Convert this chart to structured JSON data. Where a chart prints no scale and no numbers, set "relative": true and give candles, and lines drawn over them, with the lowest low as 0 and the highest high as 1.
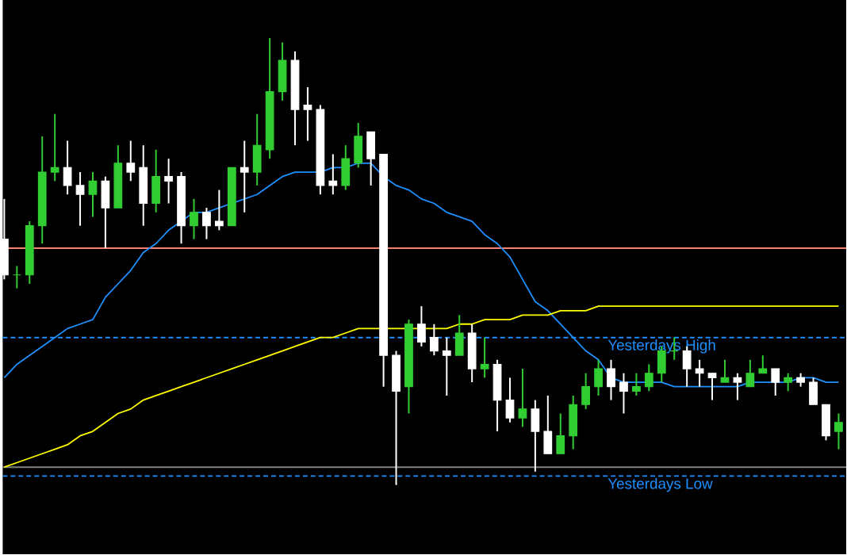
{
  "chart_data": {
    "type": "candlestick",
    "relative": true,
    "categories": [
      null,
      null,
      null,
      null,
      null,
      null,
      null,
      null,
      null,
      null,
      null,
      null,
      null,
      null,
      null,
      null,
      null,
      null,
      null,
      null,
      null,
      null,
      null,
      null,
      null,
      null,
      null,
      null,
      null,
      null,
      null,
      null,
      null,
      null,
      null,
      null,
      null,
      null,
      null,
      null,
      null,
      null,
      null,
      null,
      null,
      null,
      null,
      null,
      null,
      null,
      null,
      null,
      null,
      null,
      null,
      null,
      null,
      null,
      null,
      null,
      null,
      null,
      null,
      null,
      null,
      null,
      null
    ],
    "ohlc": [
      [
        0.55,
        0.64,
        0.46,
        0.47
      ],
      [
        0.47,
        0.49,
        0.44,
        0.47
      ],
      [
        0.47,
        0.59,
        0.45,
        0.58
      ],
      [
        0.58,
        0.78,
        0.54,
        0.7
      ],
      [
        0.7,
        0.83,
        0.68,
        0.71
      ],
      [
        0.71,
        0.77,
        0.65,
        0.67
      ],
      [
        0.67,
        0.7,
        0.58,
        0.65
      ],
      [
        0.65,
        0.7,
        0.6,
        0.68
      ],
      [
        0.68,
        0.69,
        0.53,
        0.62
      ],
      [
        0.62,
        0.76,
        0.62,
        0.72
      ],
      [
        0.72,
        0.77,
        0.68,
        0.7
      ],
      [
        0.71,
        0.76,
        0.58,
        0.63
      ],
      [
        0.63,
        0.75,
        0.61,
        0.69
      ],
      [
        0.69,
        0.73,
        0.63,
        0.68
      ],
      [
        0.69,
        0.7,
        0.54,
        0.58
      ],
      [
        0.58,
        0.64,
        0.55,
        0.61
      ],
      [
        0.61,
        0.62,
        0.55,
        0.58
      ],
      [
        0.59,
        0.66,
        0.57,
        0.58
      ],
      [
        0.58,
        0.71,
        0.58,
        0.71
      ],
      [
        0.71,
        0.77,
        0.61,
        0.7
      ],
      [
        0.7,
        0.83,
        0.67,
        0.76
      ],
      [
        0.75,
        1.0,
        0.73,
        0.88
      ],
      [
        0.88,
        0.99,
        0.86,
        0.95
      ],
      [
        0.95,
        0.97,
        0.76,
        0.84
      ],
      [
        0.85,
        0.89,
        0.77,
        0.84
      ],
      [
        0.84,
        0.85,
        0.65,
        0.67
      ],
      [
        0.68,
        0.74,
        0.65,
        0.67
      ],
      [
        0.67,
        0.76,
        0.66,
        0.73
      ],
      [
        0.72,
        0.81,
        0.71,
        0.78
      ],
      [
        0.79,
        0.79,
        0.67,
        0.73
      ],
      [
        0.74,
        0.74,
        0.22,
        0.29
      ],
      [
        0.29,
        0.3,
        0.0,
        0.21
      ],
      [
        0.22,
        0.37,
        0.16,
        0.36
      ],
      [
        0.36,
        0.4,
        0.31,
        0.32
      ],
      [
        0.33,
        0.36,
        0.29,
        0.3
      ],
      [
        0.3,
        0.33,
        0.2,
        0.29
      ],
      [
        0.29,
        0.38,
        0.29,
        0.34
      ],
      [
        0.34,
        0.36,
        0.23,
        0.26
      ],
      [
        0.26,
        0.33,
        0.24,
        0.27
      ],
      [
        0.27,
        0.28,
        0.12,
        0.19
      ],
      [
        0.19,
        0.24,
        0.14,
        0.15
      ],
      [
        0.15,
        0.26,
        0.13,
        0.17
      ],
      [
        0.17,
        0.19,
        0.03,
        0.12
      ],
      [
        0.12,
        0.2,
        0.07,
        0.07
      ],
      [
        0.07,
        0.16,
        0.07,
        0.11
      ],
      [
        0.11,
        0.2,
        0.08,
        0.18
      ],
      [
        0.18,
        0.25,
        0.17,
        0.22
      ],
      [
        0.22,
        0.28,
        0.2,
        0.26
      ],
      [
        0.26,
        0.28,
        0.19,
        0.22
      ],
      [
        0.23,
        0.25,
        0.16,
        0.21
      ],
      [
        0.21,
        0.25,
        0.2,
        0.22
      ],
      [
        0.22,
        0.27,
        0.21,
        0.25
      ],
      [
        0.25,
        0.31,
        0.23,
        0.3
      ],
      [
        0.3,
        0.33,
        0.28,
        0.3
      ],
      [
        0.3,
        0.31,
        0.22,
        0.26
      ],
      [
        0.26,
        0.28,
        0.22,
        0.25
      ],
      [
        0.25,
        0.25,
        0.19,
        0.24
      ],
      [
        0.23,
        0.28,
        0.23,
        0.24
      ],
      [
        0.24,
        0.25,
        0.19,
        0.23
      ],
      [
        0.22,
        0.28,
        0.22,
        0.25
      ],
      [
        0.25,
        0.29,
        0.25,
        0.26
      ],
      [
        0.26,
        0.26,
        0.2,
        0.23
      ],
      [
        0.23,
        0.25,
        0.21,
        0.24
      ],
      [
        0.24,
        0.25,
        0.22,
        0.23
      ],
      [
        0.23,
        0.24,
        0.18,
        0.18
      ],
      [
        0.18,
        0.18,
        0.1,
        0.11
      ],
      [
        0.12,
        0.16,
        0.08,
        0.14
      ]
    ],
    "colors": [
      "#ffffff",
      "#32cd32",
      "#32cd32",
      "#32cd32",
      "#32cd32",
      "#ffffff",
      "#ffffff",
      "#32cd32",
      "#ffffff",
      "#32cd32",
      "#ffffff",
      "#ffffff",
      "#32cd32",
      "#ffffff",
      "#ffffff",
      "#32cd32",
      "#ffffff",
      "#ffffff",
      "#32cd32",
      "#ffffff",
      "#32cd32",
      "#32cd32",
      "#32cd32",
      "#ffffff",
      "#ffffff",
      "#ffffff",
      "#ffffff",
      "#32cd32",
      "#32cd32",
      "#ffffff",
      "#ffffff",
      "#ffffff",
      "#32cd32",
      "#ffffff",
      "#ffffff",
      "#ffffff",
      "#32cd32",
      "#ffffff",
      "#32cd32",
      "#ffffff",
      "#ffffff",
      "#32cd32",
      "#ffffff",
      "#ffffff",
      "#32cd32",
      "#32cd32",
      "#32cd32",
      "#32cd32",
      "#ffffff",
      "#ffffff",
      "#32cd32",
      "#32cd32",
      "#32cd32",
      "#32cd32",
      "#ffffff",
      "#ffffff",
      "#ffffff",
      "#32cd32",
      "#ffffff",
      "#32cd32",
      "#32cd32",
      "#ffffff",
      "#32cd32",
      "#ffffff",
      "#ffffff",
      "#ffffff",
      "#32cd32"
    ],
    "series": [
      {
        "type": "line",
        "color": "#1e90ff",
        "values": [
          0.24,
          0.27,
          0.29,
          0.31,
          0.33,
          0.35,
          0.36,
          0.37,
          0.42,
          0.45,
          0.48,
          0.52,
          0.54,
          0.57,
          0.59,
          0.61,
          0.61,
          0.62,
          0.63,
          0.64,
          0.65,
          0.67,
          0.69,
          0.7,
          0.7,
          0.7,
          0.71,
          0.71,
          0.72,
          0.72,
          0.69,
          0.67,
          0.66,
          0.64,
          0.63,
          0.61,
          0.6,
          0.59,
          0.56,
          0.54,
          0.51,
          0.46,
          0.41,
          0.39,
          0.36,
          0.33,
          0.3,
          0.28,
          0.24,
          0.23,
          0.23,
          0.23,
          0.23,
          0.22,
          0.22,
          0.22,
          0.22,
          0.22,
          0.22,
          0.23,
          0.23,
          0.23,
          0.23,
          0.24,
          0.24,
          0.23,
          0.23
        ]
      },
      {
        "type": "line",
        "color": "#ffff00",
        "values": [
          0.04,
          0.05,
          0.06,
          0.07,
          0.08,
          0.09,
          0.11,
          0.12,
          0.14,
          0.16,
          0.17,
          0.19,
          0.2,
          0.21,
          0.22,
          0.23,
          0.24,
          0.25,
          0.26,
          0.27,
          0.28,
          0.29,
          0.3,
          0.31,
          0.32,
          0.33,
          0.33,
          0.34,
          0.35,
          0.35,
          0.35,
          0.35,
          0.35,
          0.35,
          0.35,
          0.35,
          0.36,
          0.36,
          0.37,
          0.37,
          0.37,
          0.38,
          0.38,
          0.38,
          0.39,
          0.39,
          0.39,
          0.4,
          0.4,
          0.4,
          0.4,
          0.4,
          0.4,
          0.4,
          0.4,
          0.4,
          0.4,
          0.4,
          0.4,
          0.4,
          0.4,
          0.4,
          0.4,
          0.4,
          0.4,
          0.4,
          0.4
        ]
      }
    ],
    "ref_lines": [
      {
        "axis": "y",
        "value": 0.33,
        "label": "Yesterdays High",
        "color": "#1e90ff",
        "line_style": "dashed"
      },
      {
        "axis": "y",
        "value": 0.02,
        "label": "Yesterdays Low",
        "color": "#1e90ff",
        "line_style": "dashed"
      },
      {
        "axis": "y",
        "value": 0.53,
        "color": "#fa8072",
        "line_style": "solid"
      },
      {
        "axis": "y",
        "value": 0.04,
        "color": "#808080",
        "line_style": "solid"
      }
    ]
  }
}
